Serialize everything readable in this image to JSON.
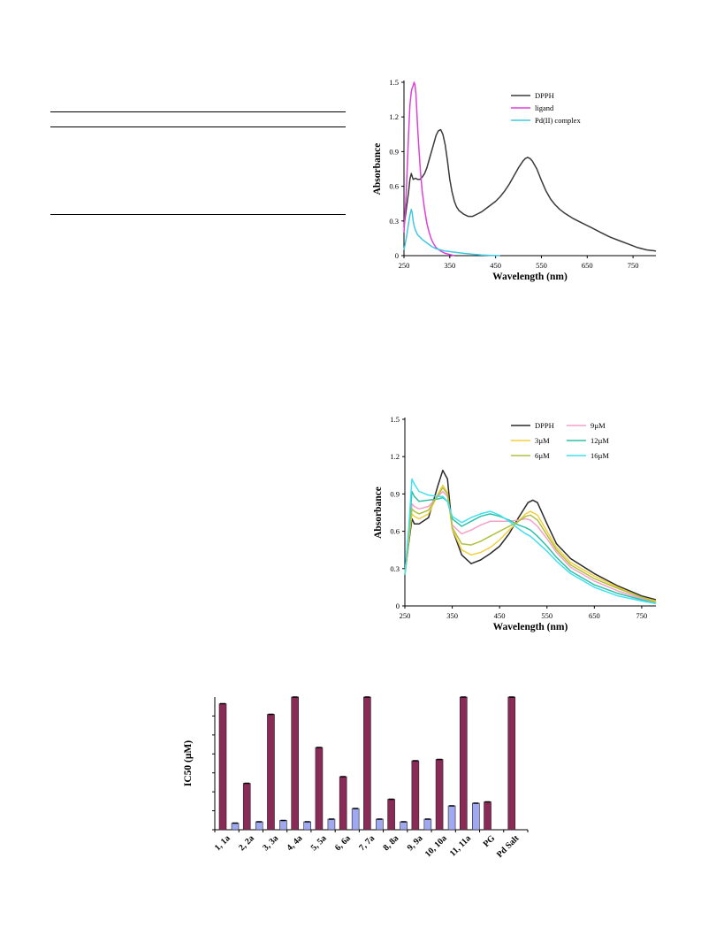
{
  "chart_data": [
    {
      "type": "line",
      "xlabel": "Wavelength (nm)",
      "ylabel": "Absorbance",
      "xlim": [
        250,
        800
      ],
      "ylim": [
        0,
        1.5
      ],
      "xticks": [
        "250",
        "350",
        "450",
        "550",
        "650",
        "750"
      ],
      "yticks": [
        "0",
        "0.3",
        "0.6",
        "0.9",
        "1.2",
        "1.5"
      ],
      "legend_position": "top-right",
      "series": [
        {
          "name": "DPPH",
          "color": "#3a3a3a",
          "x": [
            250,
            255,
            260,
            263,
            266,
            270,
            275,
            280,
            285,
            290,
            295,
            300,
            305,
            310,
            315,
            320,
            325,
            330,
            335,
            340,
            345,
            350,
            355,
            360,
            365,
            370,
            380,
            390,
            400,
            410,
            420,
            430,
            440,
            450,
            460,
            470,
            480,
            490,
            500,
            510,
            515,
            520,
            525,
            530,
            540,
            550,
            560,
            570,
            580,
            590,
            600,
            620,
            640,
            660,
            680,
            700,
            720,
            740,
            760,
            780,
            800
          ],
          "y": [
            0.25,
            0.4,
            0.55,
            0.66,
            0.71,
            0.66,
            0.67,
            0.66,
            0.66,
            0.68,
            0.71,
            0.76,
            0.83,
            0.9,
            0.97,
            1.04,
            1.08,
            1.09,
            1.05,
            0.96,
            0.82,
            0.66,
            0.55,
            0.47,
            0.42,
            0.39,
            0.36,
            0.34,
            0.34,
            0.36,
            0.38,
            0.41,
            0.44,
            0.47,
            0.51,
            0.56,
            0.62,
            0.69,
            0.76,
            0.82,
            0.84,
            0.85,
            0.84,
            0.82,
            0.75,
            0.65,
            0.56,
            0.49,
            0.44,
            0.4,
            0.37,
            0.32,
            0.28,
            0.24,
            0.2,
            0.16,
            0.13,
            0.1,
            0.07,
            0.05,
            0.04
          ]
        },
        {
          "name": "ligand",
          "color": "#e040d8",
          "x": [
            250,
            255,
            260,
            263,
            266,
            268,
            270,
            272,
            274,
            276,
            278,
            280,
            283,
            286,
            290,
            295,
            300,
            305,
            310,
            315,
            320,
            330,
            340,
            350,
            360
          ],
          "y": [
            0.2,
            0.55,
            1.05,
            1.3,
            1.42,
            1.45,
            1.47,
            1.5,
            1.48,
            1.4,
            1.25,
            1.1,
            0.9,
            0.72,
            0.55,
            0.4,
            0.28,
            0.2,
            0.14,
            0.1,
            0.07,
            0.04,
            0.02,
            0.01,
            0.0
          ]
        },
        {
          "name": "Pd(II) complex",
          "color": "#40c8e0",
          "x": [
            250,
            255,
            260,
            263,
            266,
            268,
            270,
            272,
            275,
            280,
            290,
            300,
            310,
            320,
            330,
            340,
            350,
            360,
            380,
            400,
            420,
            440,
            460
          ],
          "y": [
            0.05,
            0.15,
            0.28,
            0.35,
            0.4,
            0.37,
            0.3,
            0.26,
            0.22,
            0.18,
            0.14,
            0.11,
            0.08,
            0.06,
            0.05,
            0.04,
            0.035,
            0.03,
            0.02,
            0.012,
            0.006,
            0.002,
            0.0
          ]
        }
      ]
    },
    {
      "type": "line",
      "xlabel": "Wavelength (nm)",
      "ylabel": "Absorbance",
      "xlim": [
        250,
        780
      ],
      "ylim": [
        0,
        1.5
      ],
      "xticks": [
        "250",
        "350",
        "450",
        "550",
        "650",
        "750"
      ],
      "yticks": [
        "0",
        "0.3",
        "0.6",
        "0.9",
        "1.2",
        "1.5"
      ],
      "legend_position": "top-right",
      "series": [
        {
          "name": "DPPH",
          "color": "#2a2a2a",
          "x": [
            250,
            258,
            265,
            270,
            280,
            300,
            320,
            330,
            340,
            350,
            370,
            390,
            410,
            430,
            450,
            470,
            490,
            510,
            520,
            530,
            550,
            570,
            600,
            650,
            700,
            750,
            780
          ],
          "y": [
            0.25,
            0.5,
            0.7,
            0.66,
            0.66,
            0.71,
            0.97,
            1.09,
            1.02,
            0.62,
            0.41,
            0.34,
            0.37,
            0.42,
            0.48,
            0.58,
            0.71,
            0.83,
            0.85,
            0.83,
            0.66,
            0.5,
            0.38,
            0.26,
            0.16,
            0.08,
            0.05
          ]
        },
        {
          "name": "9µM",
          "color": "#f6a0c8",
          "x": [
            250,
            258,
            265,
            270,
            280,
            300,
            320,
            330,
            340,
            350,
            370,
            390,
            410,
            430,
            450,
            470,
            490,
            505,
            515,
            530,
            550,
            570,
            600,
            650,
            700,
            750,
            780
          ],
          "y": [
            0.25,
            0.55,
            0.82,
            0.8,
            0.78,
            0.8,
            0.88,
            0.92,
            0.88,
            0.65,
            0.58,
            0.61,
            0.65,
            0.68,
            0.68,
            0.68,
            0.69,
            0.7,
            0.69,
            0.64,
            0.54,
            0.43,
            0.31,
            0.2,
            0.12,
            0.06,
            0.03
          ]
        },
        {
          "name": "3µM",
          "color": "#f0d040",
          "x": [
            250,
            258,
            265,
            270,
            280,
            300,
            320,
            330,
            340,
            350,
            370,
            390,
            410,
            430,
            450,
            470,
            490,
            505,
            515,
            530,
            550,
            570,
            600,
            650,
            700,
            750,
            780
          ],
          "y": [
            0.25,
            0.52,
            0.74,
            0.72,
            0.7,
            0.74,
            0.9,
            0.97,
            0.91,
            0.62,
            0.45,
            0.41,
            0.43,
            0.47,
            0.53,
            0.61,
            0.68,
            0.74,
            0.76,
            0.73,
            0.6,
            0.47,
            0.35,
            0.24,
            0.15,
            0.07,
            0.04
          ]
        },
        {
          "name": "12µM",
          "color": "#30c0a8",
          "x": [
            250,
            258,
            265,
            270,
            280,
            300,
            320,
            330,
            340,
            350,
            370,
            390,
            410,
            430,
            450,
            470,
            490,
            505,
            515,
            530,
            550,
            570,
            600,
            650,
            700,
            750,
            780
          ],
          "y": [
            0.25,
            0.58,
            0.92,
            0.88,
            0.84,
            0.85,
            0.86,
            0.87,
            0.84,
            0.7,
            0.64,
            0.68,
            0.72,
            0.74,
            0.72,
            0.69,
            0.65,
            0.63,
            0.61,
            0.56,
            0.48,
            0.39,
            0.28,
            0.17,
            0.1,
            0.05,
            0.02
          ]
        },
        {
          "name": "6µM",
          "color": "#b0c040",
          "x": [
            250,
            258,
            265,
            270,
            280,
            300,
            320,
            330,
            340,
            350,
            370,
            390,
            410,
            430,
            450,
            470,
            490,
            505,
            515,
            530,
            550,
            570,
            600,
            650,
            700,
            750,
            780
          ],
          "y": [
            0.25,
            0.53,
            0.78,
            0.76,
            0.74,
            0.77,
            0.89,
            0.95,
            0.9,
            0.63,
            0.5,
            0.49,
            0.52,
            0.56,
            0.6,
            0.64,
            0.68,
            0.72,
            0.73,
            0.69,
            0.57,
            0.45,
            0.33,
            0.22,
            0.14,
            0.07,
            0.03
          ]
        },
        {
          "name": "16µM",
          "color": "#40e0f0",
          "x": [
            250,
            258,
            265,
            270,
            280,
            300,
            320,
            330,
            340,
            350,
            370,
            390,
            410,
            430,
            450,
            470,
            490,
            505,
            515,
            530,
            550,
            570,
            600,
            650,
            700,
            750,
            780
          ],
          "y": [
            0.25,
            0.62,
            1.02,
            0.98,
            0.92,
            0.89,
            0.88,
            0.88,
            0.84,
            0.72,
            0.67,
            0.71,
            0.74,
            0.76,
            0.73,
            0.68,
            0.62,
            0.58,
            0.56,
            0.51,
            0.44,
            0.36,
            0.26,
            0.15,
            0.08,
            0.04,
            0.02
          ]
        }
      ]
    },
    {
      "type": "bar",
      "ylabel": "IC50 (µM)",
      "ylim": [
        0,
        100
      ],
      "categories": [
        "1, 1a",
        "2, 2a",
        "3, 3a",
        "4, 4a",
        "5, 5a",
        "6, 6a",
        "7, 7a",
        "8, 8a",
        "9, 9a",
        "10, 10a",
        "11, 11a",
        "PG",
        "Pd Salt"
      ],
      "series": [
        {
          "color": "#8a2a56",
          "values": [
            95,
            35,
            87,
            100,
            62,
            40,
            100,
            23,
            52,
            53,
            100,
            21,
            100
          ]
        },
        {
          "color": "#a0a8f0",
          "values": [
            5,
            6,
            7,
            6,
            8,
            16,
            8,
            6,
            8,
            18,
            20,
            null,
            null
          ]
        }
      ]
    }
  ]
}
